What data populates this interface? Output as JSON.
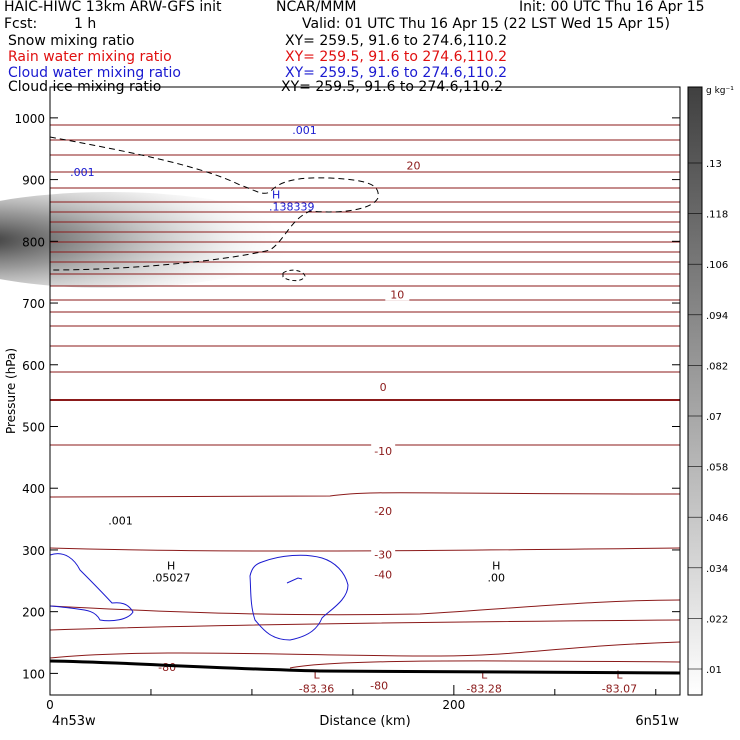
{
  "header": {
    "model": "HAIC-HIWC 13km ARW-GFS init",
    "org": "NCAR/MMM",
    "init": "Init: 00 UTC Thu 16 Apr 15",
    "fcst_label": "Fcst:",
    "fcst_value": "1 h",
    "valid": "Valid: 01 UTC Thu 16 Apr 15 (22 LST Wed 15 Apr 15)",
    "fields": [
      {
        "name": "Snow mixing ratio",
        "xy": "XY= 259.5, 91.6 to 274.6,110.2",
        "color": "#000000"
      },
      {
        "name": "Rain water mixing ratio",
        "xy": "XY= 259.5, 91.6 to 274.6,110.2",
        "color": "#e01010"
      },
      {
        "name": "Cloud water mixing ratio",
        "xy": "XY= 259.5, 91.6 to 274.6,110.2",
        "color": "#1a1ad0"
      },
      {
        "name": "Cloud ice mixing ratio",
        "xy": "XY= 259.5, 91.6 to 274.6,110.2",
        "color": "#000000"
      }
    ]
  },
  "chart_data": {
    "type": "contour",
    "xlabel": "Distance (km)",
    "ylabel": "Pressure (hPa)",
    "xlim": [
      0,
      312
    ],
    "ylim": [
      1050,
      65
    ],
    "x_ticks": [
      0,
      200
    ],
    "x_minor_ticks": [
      50,
      100,
      150,
      250,
      300
    ],
    "y_ticks": [
      100,
      200,
      300,
      400,
      500,
      600,
      700,
      800,
      900,
      1000
    ],
    "x_start_label": "4n53w",
    "x_end_label": "6n51w",
    "colorbar": {
      "unit": "g kg⁻¹",
      "labels": [
        ".01",
        ".022",
        ".034",
        ".046",
        ".058",
        ".07",
        ".082",
        ".094",
        ".106",
        ".118",
        ".13"
      ]
    },
    "temperature_contours": {
      "color": "#8b1a1a",
      "labels": [
        {
          "text": "-80",
          "x": 58,
          "p": 110
        },
        {
          "text": "-80",
          "x": 163,
          "p": 80
        },
        {
          "text": "-40",
          "x": 165,
          "p": 260
        },
        {
          "text": "-30",
          "x": 165,
          "p": 293
        },
        {
          "text": "-20",
          "x": 165,
          "p": 363
        },
        {
          "text": "-10",
          "x": 165,
          "p": 460
        },
        {
          "text": "0",
          "x": 165,
          "p": 564
        },
        {
          "text": "10",
          "x": 172,
          "p": 714
        },
        {
          "text": "20",
          "x": 180,
          "p": 923
        }
      ],
      "lows": [
        {
          "symbol": "L",
          "value": "-83.36",
          "x": 132,
          "p": 92
        },
        {
          "symbol": "L",
          "value": "-83.28",
          "x": 215,
          "p": 92
        },
        {
          "symbol": "L",
          "value": "-83.07",
          "x": 282,
          "p": 92
        }
      ],
      "highs": [
        {
          "symbol": "H",
          "value": ".00",
          "x": 221,
          "p": 268
        }
      ]
    },
    "snow": {
      "max_label": {
        "symbol": "H",
        "value": ".05027",
        "x": 60,
        "p": 262
      },
      "contour_label": {
        "text": ".001",
        "x": 25,
        "p": 348
      }
    },
    "cloud_water": {
      "max_label": {
        "symbol": "H",
        "value": ".138339",
        "x": 106,
        "p": 873
      },
      "contour_labels": [
        {
          "text": ".001",
          "x": 5,
          "p": 912
        },
        {
          "text": ".001",
          "x": 115,
          "p": 980
        }
      ]
    }
  }
}
